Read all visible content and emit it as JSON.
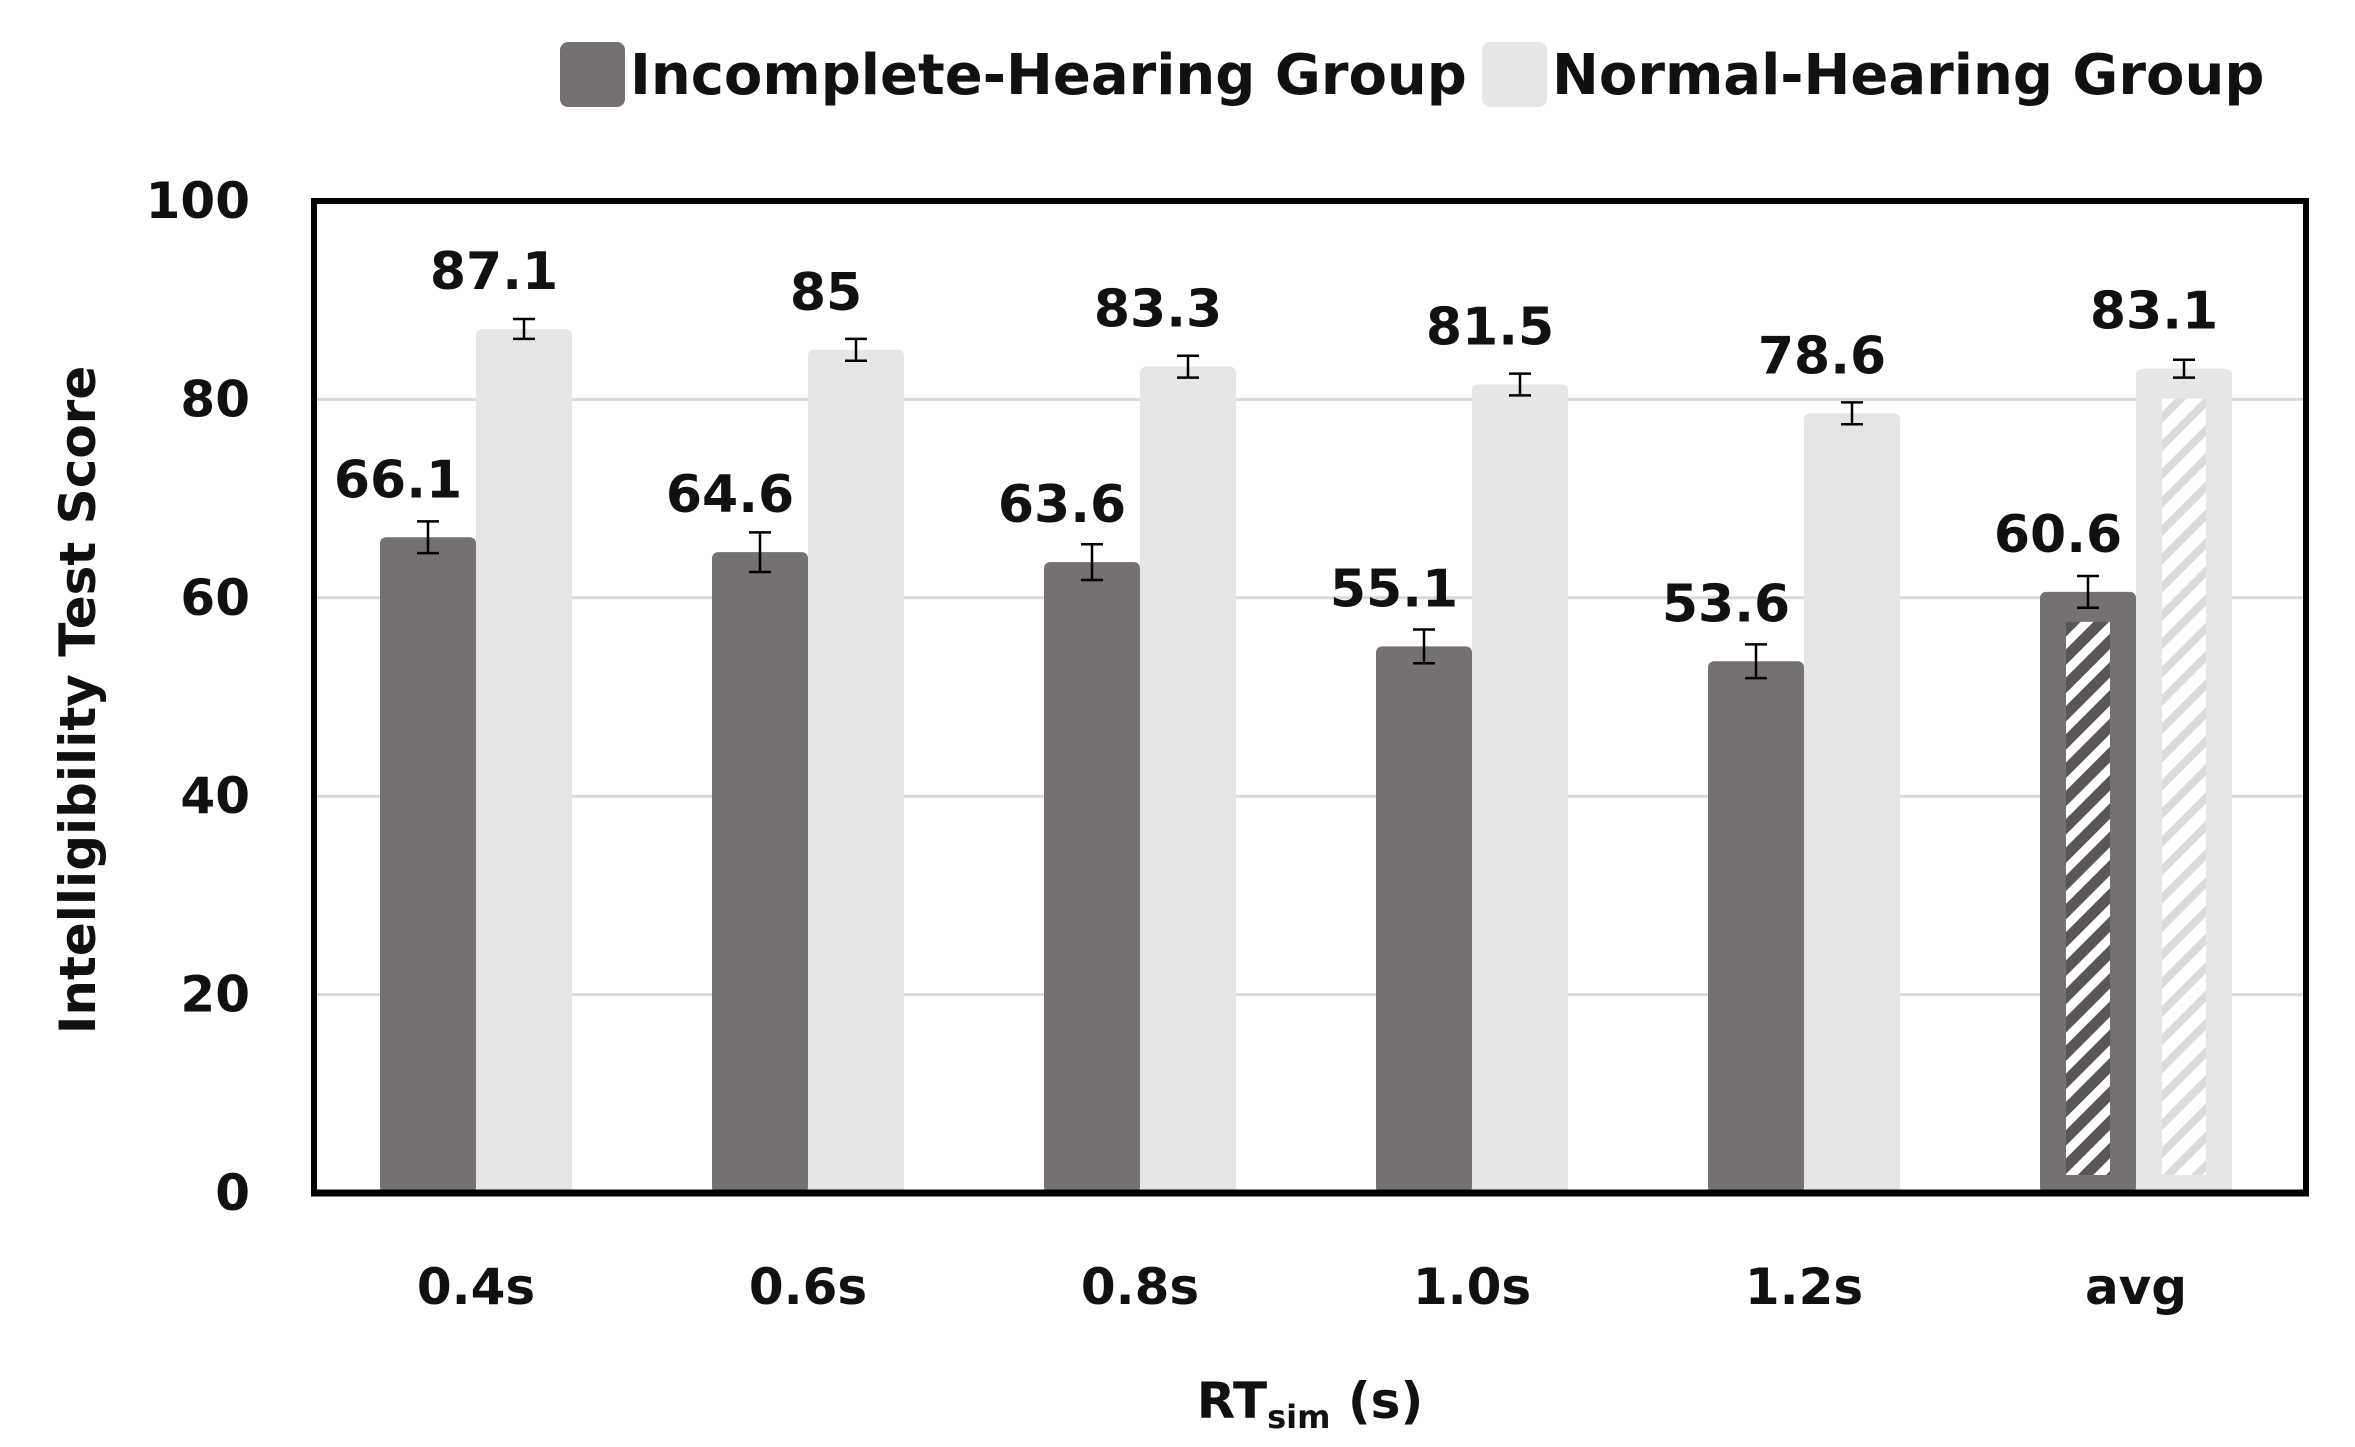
{
  "chart_data": {
    "type": "bar",
    "categories": [
      "0.4s",
      "0.6s",
      "0.8s",
      "1.0s",
      "1.2s",
      "avg"
    ],
    "series": [
      {
        "name": "Incomplete-Hearing Group",
        "color": "#767171",
        "values": [
          66.1,
          64.6,
          63.6,
          55.1,
          53.6,
          60.6
        ],
        "error": [
          1.6,
          2.0,
          1.8,
          1.7,
          1.7,
          1.6
        ],
        "labels": [
          "66.1",
          "64.6",
          "63.6",
          "55.1",
          "53.6",
          "60.6"
        ]
      },
      {
        "name": "Normal-Hearing Group",
        "color": "#e7e6e6",
        "values": [
          87.1,
          85,
          83.3,
          81.5,
          78.6,
          83.1
        ],
        "error": [
          1.0,
          1.1,
          1.1,
          1.1,
          1.1,
          0.9
        ],
        "labels": [
          "87.1",
          "85",
          "83.3",
          "81.5",
          "78.6",
          "83.1"
        ]
      }
    ],
    "hatched_category": "avg",
    "xlabel": {
      "main": "RT",
      "sub": "sim",
      "suffix": " (s)"
    },
    "ylabel": "Intelligibility Test Score",
    "ylim": [
      0,
      100
    ],
    "yticks": [
      0,
      20,
      40,
      60,
      80,
      100
    ],
    "grid": true,
    "legend_position": "top"
  }
}
